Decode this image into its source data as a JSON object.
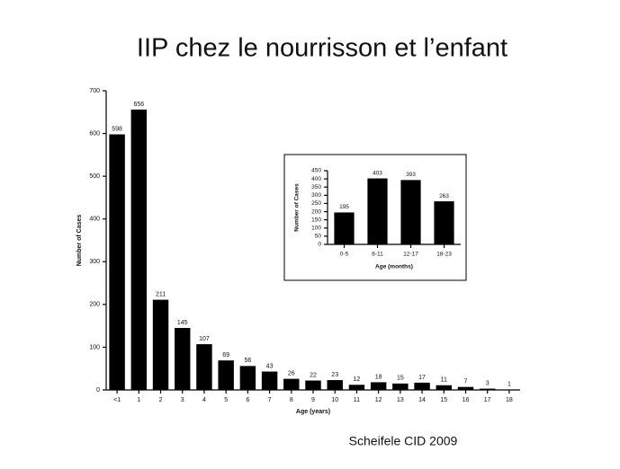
{
  "slide": {
    "title": "IIP chez le nourrisson et l’enfant",
    "source": "Scheifele CID 2009"
  },
  "chart_data": [
    {
      "type": "bar",
      "ylabel": "Number of Cases",
      "xlabel": "Age (years)",
      "categories": [
        "<1",
        "1",
        "2",
        "3",
        "4",
        "5",
        "6",
        "7",
        "8",
        "9",
        "10",
        "11",
        "12",
        "13",
        "14",
        "15",
        "16",
        "17",
        "18"
      ],
      "values": [
        598,
        656,
        211,
        145,
        107,
        69,
        56,
        43,
        26,
        22,
        23,
        12,
        18,
        15,
        17,
        11,
        7,
        3,
        1
      ],
      "color": "#000000",
      "ylim": [
        0,
        700
      ],
      "yticks": [
        0,
        100,
        200,
        300,
        400,
        500,
        600,
        700
      ]
    },
    {
      "type": "bar",
      "ylabel": "Number of Cases",
      "xlabel": "Age (months)",
      "categories": [
        "0-5",
        "6-11",
        "12-17",
        "18-23"
      ],
      "values": [
        195,
        403,
        393,
        263
      ],
      "color": "#000000",
      "ylim": [
        0,
        450
      ],
      "yticks": [
        0,
        50,
        100,
        150,
        200,
        250,
        300,
        350,
        400,
        450
      ]
    }
  ]
}
